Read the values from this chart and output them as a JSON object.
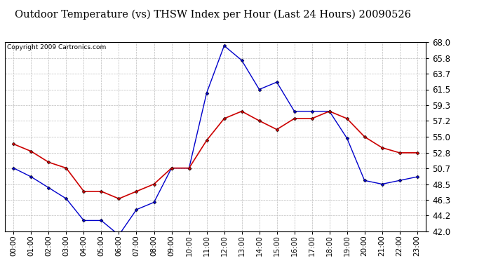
{
  "title": "Outdoor Temperature (vs) THSW Index per Hour (Last 24 Hours) 20090526",
  "copyright": "Copyright 2009 Cartronics.com",
  "hours": [
    "00:00",
    "01:00",
    "02:00",
    "03:00",
    "04:00",
    "05:00",
    "06:00",
    "07:00",
    "08:00",
    "09:00",
    "10:00",
    "11:00",
    "12:00",
    "13:00",
    "14:00",
    "15:00",
    "16:00",
    "17:00",
    "18:00",
    "19:00",
    "20:00",
    "21:00",
    "22:00",
    "23:00"
  ],
  "temp_red": [
    54.0,
    53.0,
    51.5,
    50.7,
    47.5,
    47.5,
    46.5,
    47.5,
    48.5,
    50.7,
    50.7,
    54.5,
    57.5,
    58.5,
    57.2,
    56.0,
    57.5,
    57.5,
    58.5,
    57.5,
    55.0,
    53.5,
    52.8,
    52.8
  ],
  "thsw_blue": [
    50.7,
    49.5,
    48.0,
    46.5,
    43.5,
    43.5,
    41.5,
    45.0,
    46.0,
    50.7,
    50.7,
    61.0,
    67.5,
    65.5,
    61.5,
    62.5,
    58.5,
    58.5,
    58.5,
    54.8,
    49.0,
    48.5,
    49.0,
    49.5
  ],
  "ylim": [
    42.0,
    68.0
  ],
  "yticks": [
    42.0,
    44.2,
    46.3,
    48.5,
    50.7,
    52.8,
    55.0,
    57.2,
    59.3,
    61.5,
    63.7,
    65.8,
    68.0
  ],
  "line_color_red": "#cc0000",
  "line_color_blue": "#0000cc",
  "bg_color": "#ffffff",
  "plot_bg_color": "#ffffff",
  "grid_color": "#bbbbbb",
  "title_fontsize": 10.5,
  "copyright_fontsize": 6.5,
  "tick_fontsize": 7.5,
  "ytick_fontsize": 8.5
}
